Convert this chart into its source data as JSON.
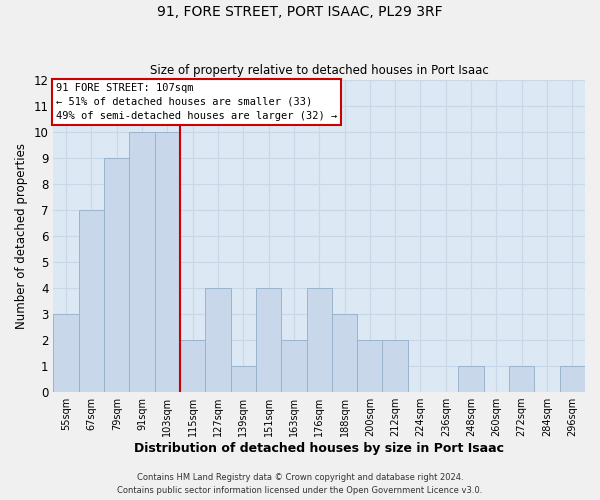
{
  "title": "91, FORE STREET, PORT ISAAC, PL29 3RF",
  "subtitle": "Size of property relative to detached houses in Port Isaac",
  "xlabel": "Distribution of detached houses by size in Port Isaac",
  "ylabel": "Number of detached properties",
  "bar_labels": [
    "55sqm",
    "67sqm",
    "79sqm",
    "91sqm",
    "103sqm",
    "115sqm",
    "127sqm",
    "139sqm",
    "151sqm",
    "163sqm",
    "176sqm",
    "188sqm",
    "200sqm",
    "212sqm",
    "224sqm",
    "236sqm",
    "248sqm",
    "260sqm",
    "272sqm",
    "284sqm",
    "296sqm"
  ],
  "bar_values": [
    3,
    7,
    9,
    10,
    10,
    2,
    4,
    1,
    4,
    2,
    4,
    3,
    2,
    2,
    0,
    0,
    1,
    0,
    1,
    0,
    1
  ],
  "bar_color": "#c8d8ea",
  "bar_edge_color": "#9ab4cc",
  "vline_after_index": 4,
  "vline_color": "#cc0000",
  "ylim": [
    0,
    12
  ],
  "yticks": [
    0,
    1,
    2,
    3,
    4,
    5,
    6,
    7,
    8,
    9,
    10,
    11,
    12
  ],
  "annotation_title": "91 FORE STREET: 107sqm",
  "annotation_line1": "← 51% of detached houses are smaller (33)",
  "annotation_line2": "49% of semi-detached houses are larger (32) →",
  "footer_line1": "Contains HM Land Registry data © Crown copyright and database right 2024.",
  "footer_line2": "Contains public sector information licensed under the Open Government Licence v3.0.",
  "grid_color": "#c8d8e8",
  "bg_color": "#dce8f4",
  "fig_bg_color": "#f0f0f0"
}
